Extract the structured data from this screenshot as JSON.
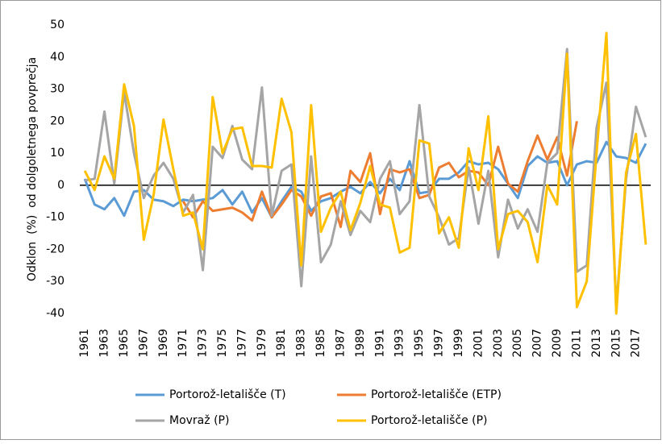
{
  "chart_data": {
    "type": "line",
    "y_label": "Odklon  (%)  od dolgoletnega povprečja",
    "categories": [
      "1961",
      null,
      "1963",
      null,
      "1965",
      null,
      "1967",
      null,
      "1969",
      null,
      "1971",
      null,
      "1973",
      null,
      "1975",
      null,
      "1977",
      null,
      "1979",
      null,
      "1981",
      null,
      "1983",
      null,
      "1985",
      null,
      "1987",
      null,
      "1989",
      null,
      "1991",
      null,
      "1993",
      null,
      "1995",
      null,
      "1997",
      null,
      "1999",
      null,
      "2001",
      null,
      "2003",
      null,
      "2005",
      null,
      "2007",
      null,
      "2009",
      null,
      "2011",
      null,
      "2013",
      null,
      "2015",
      null,
      "2017",
      null
    ],
    "series": [
      {
        "name": "Portorož-letališče (T)",
        "color": "#5b9bd5",
        "values": [
          2,
          -6,
          -7.5,
          -4,
          -9.5,
          -2,
          -1.5,
          -4.5,
          -5,
          -6.5,
          -4.5,
          -5,
          -4.5,
          -4,
          -1.5,
          -6,
          -2,
          -8.5,
          -4,
          -10,
          -5,
          -0.5,
          -2,
          -8,
          -5,
          -4,
          -2,
          -0.5,
          -2.5,
          1,
          -2.5,
          2,
          -1.5,
          7.5,
          -2.5,
          -2,
          2,
          2,
          4,
          7.5,
          6.5,
          7,
          5,
          0.5,
          -4,
          6,
          9,
          7,
          7.5,
          0,
          6.5,
          7.5,
          7,
          13.5,
          9,
          8.5,
          7,
          13
        ]
      },
      {
        "name": "Portorož-letališče (ETP)",
        "color": "#ed7d31",
        "values": [
          null,
          null,
          null,
          null,
          null,
          null,
          null,
          null,
          null,
          null,
          -5,
          -10,
          -5,
          -8,
          -7.5,
          -7,
          -8.5,
          -11,
          -2,
          -10,
          -6,
          -1.5,
          -3.5,
          -9.5,
          -3.5,
          -2.5,
          -13,
          4.5,
          1,
          10,
          -9,
          5,
          4,
          5,
          -4,
          -3,
          5.5,
          7,
          2.5,
          4.5,
          4,
          0,
          12,
          0.5,
          -2,
          7.5,
          15.5,
          8,
          15,
          3,
          20,
          null,
          null,
          null,
          null,
          null,
          null,
          null
        ]
      },
      {
        "name": "Movraž (P)",
        "color": "#a5a5a5",
        "values": [
          1.5,
          2,
          23,
          0.5,
          29,
          10,
          -4,
          3,
          7,
          2,
          -8.5,
          -3,
          -26.5,
          12,
          8.5,
          18.5,
          8,
          5,
          30.5,
          -9.5,
          4.5,
          6.5,
          -31.5,
          9,
          -24,
          -18.5,
          -5,
          -15.5,
          -8,
          -11.5,
          2,
          7.5,
          -9,
          -5,
          25,
          -3.5,
          -10,
          -18.5,
          -16.5,
          5.5,
          -12,
          4.5,
          -22.5,
          -4.5,
          -13.5,
          -7.5,
          -14.5,
          7,
          10,
          42.5,
          -27,
          -25,
          18,
          32,
          -38,
          2,
          24.5,
          15
        ]
      },
      {
        "name": "Portorož-letališče (P)",
        "color": "#ffc000",
        "values": [
          4.5,
          -1.5,
          9,
          2,
          31.5,
          18.5,
          -17,
          -3,
          20.5,
          5,
          -9.5,
          -8.5,
          -20,
          27.5,
          10,
          17.5,
          18,
          6,
          6,
          5.5,
          27,
          16.5,
          -25,
          25,
          -14.5,
          -7,
          -2,
          -14,
          -5.5,
          6,
          -6,
          -7,
          -21,
          -19.5,
          14,
          13,
          -15,
          -10,
          -19.5,
          11.5,
          -1.5,
          21.5,
          -20,
          -9,
          -8,
          -11.5,
          -24,
          0,
          -6,
          41,
          -38,
          -30,
          10,
          47.5,
          -40,
          4,
          16,
          -18.5
        ]
      }
    ],
    "ylim": [
      -40,
      50
    ],
    "yticks": [
      -40,
      -30,
      -20,
      -10,
      0,
      10,
      20,
      30,
      40,
      50
    ],
    "grid": false,
    "legend": "bottom"
  }
}
